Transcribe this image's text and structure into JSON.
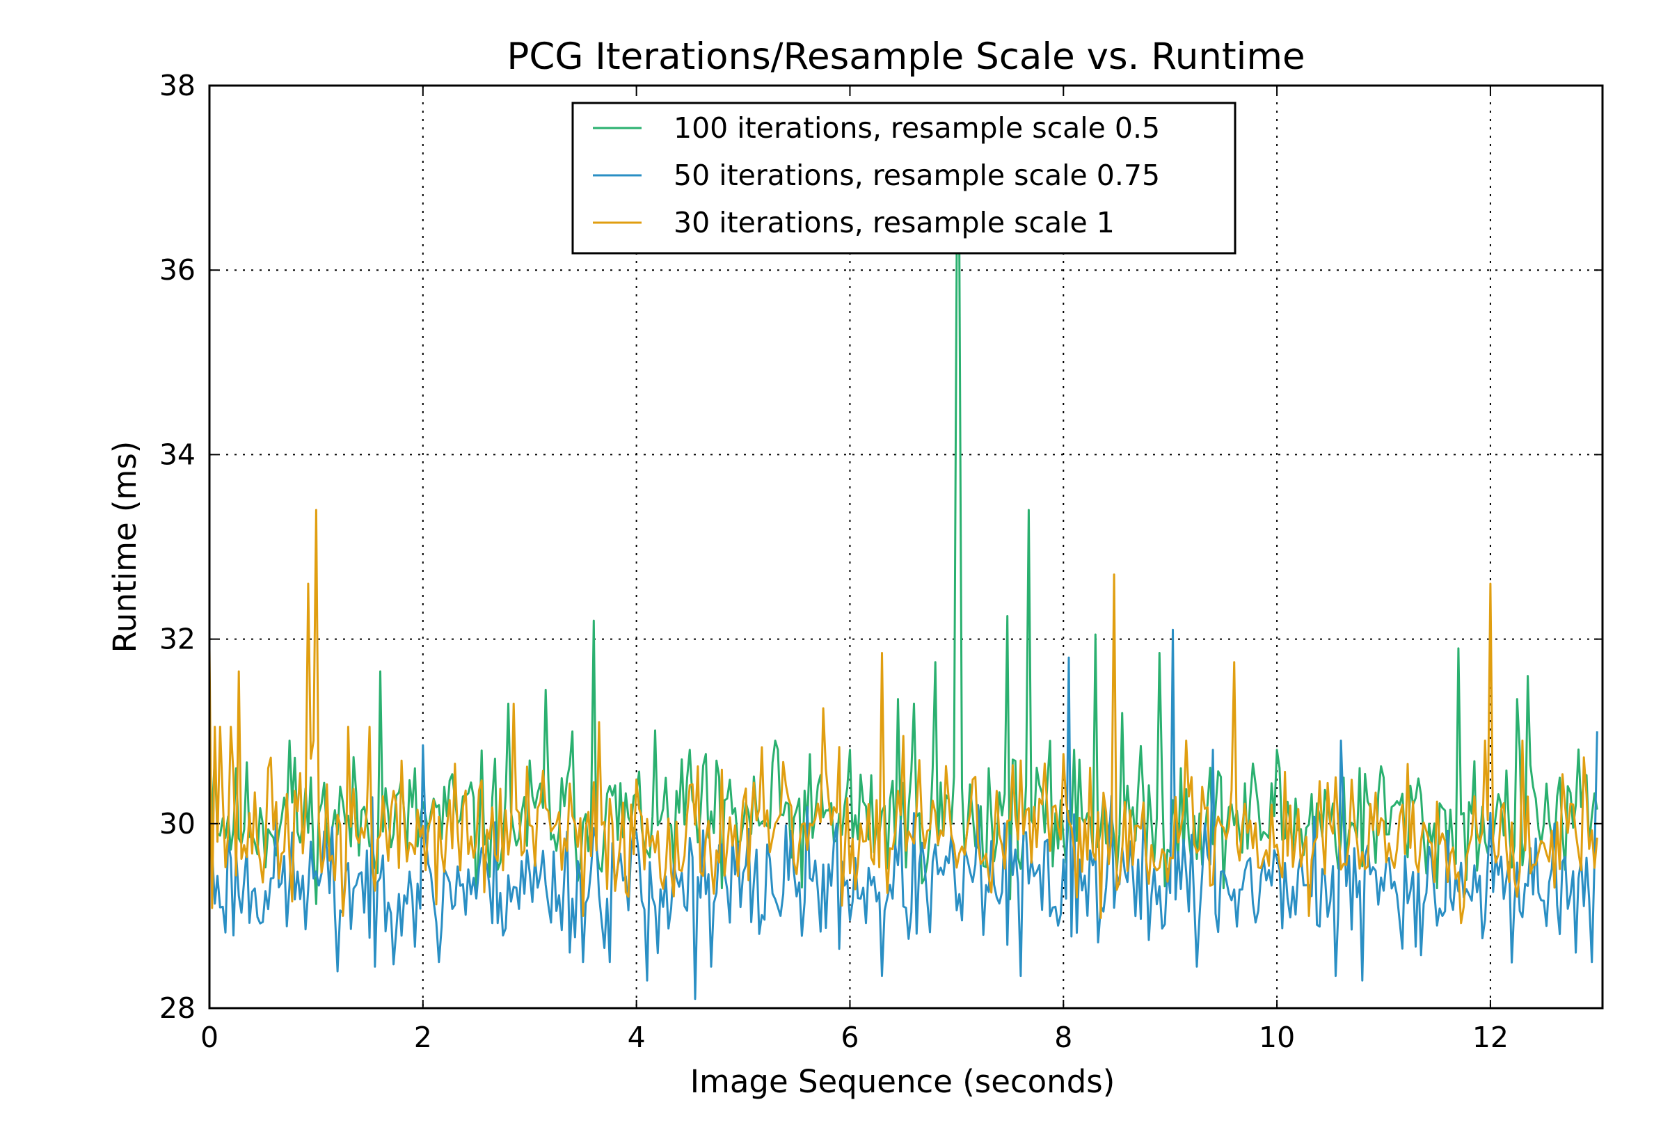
{
  "chart_data": {
    "type": "line",
    "title": "PCG Iterations/Resample Scale vs. Runtime",
    "xlabel": "Image Sequence (seconds)",
    "ylabel": "Runtime (ms)",
    "xlim": [
      0,
      13.05
    ],
    "ylim": [
      28,
      38
    ],
    "xticks": [
      0,
      2,
      4,
      6,
      8,
      10,
      12
    ],
    "yticks": [
      28,
      30,
      32,
      34,
      36,
      38
    ],
    "grid": true,
    "legend_position": "upper center",
    "colors": {
      "green": "#2ab06f",
      "blue": "#2a8fc4",
      "orange": "#e09e10"
    },
    "series": [
      {
        "name": "100 iterations, resample scale 0.5",
        "color": "#2ab06f",
        "base": 30.05,
        "noise": 0.42,
        "seed": 11,
        "spikes": [
          [
            0.05,
            30.7
          ],
          [
            0.25,
            30.6
          ],
          [
            0.75,
            30.9
          ],
          [
            0.95,
            30.5
          ],
          [
            1.6,
            31.65
          ],
          [
            2.8,
            31.3
          ],
          [
            3.15,
            31.45
          ],
          [
            3.4,
            31.0
          ],
          [
            3.6,
            32.2
          ],
          [
            4.5,
            30.8
          ],
          [
            5.3,
            30.9
          ],
          [
            6.0,
            30.8
          ],
          [
            6.45,
            31.35
          ],
          [
            6.6,
            31.3
          ],
          [
            6.8,
            31.75
          ],
          [
            7.0,
            36.2
          ],
          [
            7.03,
            36.2
          ],
          [
            7.3,
            30.6
          ],
          [
            7.48,
            32.25
          ],
          [
            7.68,
            33.4
          ],
          [
            8.1,
            30.8
          ],
          [
            8.3,
            32.05
          ],
          [
            8.55,
            31.2
          ],
          [
            8.9,
            31.85
          ],
          [
            9.1,
            30.6
          ],
          [
            10.0,
            30.8
          ],
          [
            11.0,
            30.5
          ],
          [
            11.7,
            31.9
          ],
          [
            12.25,
            31.35
          ],
          [
            12.35,
            31.6
          ]
        ],
        "dips": [
          [
            2.5,
            29.2
          ],
          [
            4.8,
            29.3
          ],
          [
            9.5,
            29.3
          ],
          [
            11.5,
            29.3
          ]
        ]
      },
      {
        "name": "50 iterations, resample scale 0.75",
        "color": "#2a8fc4",
        "base": 29.35,
        "noise": 0.42,
        "seed": 23,
        "spikes": [
          [
            0.0,
            29.7
          ],
          [
            2.0,
            30.85
          ],
          [
            3.6,
            29.95
          ],
          [
            7.2,
            30.2
          ],
          [
            8.05,
            31.8
          ],
          [
            8.1,
            30.1
          ],
          [
            8.45,
            30.3
          ],
          [
            9.02,
            32.1
          ],
          [
            9.4,
            30.8
          ],
          [
            10.6,
            30.9
          ],
          [
            12.6,
            30.0
          ],
          [
            13.0,
            31.0
          ]
        ],
        "dips": [
          [
            1.2,
            28.4
          ],
          [
            1.55,
            28.45
          ],
          [
            2.15,
            28.5
          ],
          [
            3.5,
            28.5
          ],
          [
            3.75,
            28.5
          ],
          [
            4.1,
            28.3
          ],
          [
            4.55,
            28.1
          ],
          [
            4.7,
            28.45
          ],
          [
            6.3,
            28.35
          ],
          [
            7.6,
            28.35
          ],
          [
            9.25,
            28.45
          ],
          [
            10.55,
            28.35
          ],
          [
            10.8,
            28.3
          ],
          [
            12.95,
            28.5
          ]
        ]
      },
      {
        "name": "30 iterations, resample scale 1",
        "color": "#e09e10",
        "base": 29.9,
        "noise": 0.45,
        "seed": 37,
        "spikes": [
          [
            0.0,
            31.9
          ],
          [
            0.05,
            31.05
          ],
          [
            0.1,
            31.05
          ],
          [
            0.2,
            31.05
          ],
          [
            0.27,
            31.65
          ],
          [
            0.55,
            30.6
          ],
          [
            0.92,
            32.6
          ],
          [
            0.97,
            30.9
          ],
          [
            1.0,
            33.4
          ],
          [
            1.3,
            31.05
          ],
          [
            1.5,
            31.05
          ],
          [
            2.85,
            31.3
          ],
          [
            3.65,
            31.1
          ],
          [
            5.75,
            31.25
          ],
          [
            6.3,
            31.85
          ],
          [
            6.5,
            30.95
          ],
          [
            8.48,
            32.7
          ],
          [
            9.15,
            30.9
          ],
          [
            9.6,
            31.75
          ],
          [
            11.95,
            30.9
          ],
          [
            12.0,
            32.6
          ],
          [
            12.3,
            30.9
          ]
        ],
        "dips": [
          [
            1.25,
            29.0
          ],
          [
            3.5,
            29.0
          ],
          [
            10.3,
            29.0
          ],
          [
            11.75,
            29.1
          ]
        ]
      }
    ],
    "x_start": 0,
    "x_end": 13,
    "x_step": 0.025
  }
}
